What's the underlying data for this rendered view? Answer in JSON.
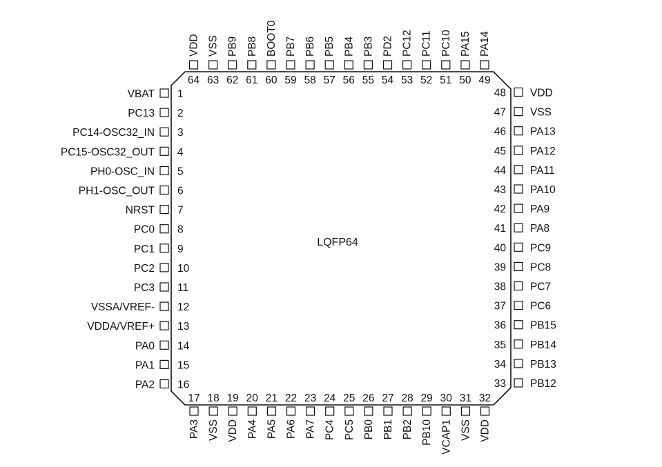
{
  "package": {
    "label": "LQFP64"
  },
  "pins": {
    "left": [
      {
        "num": "1",
        "name": "VBAT"
      },
      {
        "num": "2",
        "name": "PC13"
      },
      {
        "num": "3",
        "name": "PC14-OSC32_IN"
      },
      {
        "num": "4",
        "name": "PC15-OSC32_OUT"
      },
      {
        "num": "5",
        "name": "PH0-OSC_IN"
      },
      {
        "num": "6",
        "name": "PH1-OSC_OUT"
      },
      {
        "num": "7",
        "name": "NRST"
      },
      {
        "num": "8",
        "name": "PC0"
      },
      {
        "num": "9",
        "name": "PC1"
      },
      {
        "num": "10",
        "name": "PC2"
      },
      {
        "num": "11",
        "name": "PC3"
      },
      {
        "num": "12",
        "name": "VSSA/VREF-"
      },
      {
        "num": "13",
        "name": "VDDA/VREF+"
      },
      {
        "num": "14",
        "name": "PA0"
      },
      {
        "num": "15",
        "name": "PA1"
      },
      {
        "num": "16",
        "name": "PA2"
      }
    ],
    "bottom": [
      {
        "num": "17",
        "name": "PA3"
      },
      {
        "num": "18",
        "name": "VSS"
      },
      {
        "num": "19",
        "name": "VDD"
      },
      {
        "num": "20",
        "name": "PA4"
      },
      {
        "num": "21",
        "name": "PA5"
      },
      {
        "num": "22",
        "name": "PA6"
      },
      {
        "num": "23",
        "name": "PA7"
      },
      {
        "num": "24",
        "name": "PC4"
      },
      {
        "num": "25",
        "name": "PC5"
      },
      {
        "num": "26",
        "name": "PB0"
      },
      {
        "num": "27",
        "name": "PB1"
      },
      {
        "num": "28",
        "name": "PB2"
      },
      {
        "num": "29",
        "name": "PB10"
      },
      {
        "num": "30",
        "name": "VCAP1"
      },
      {
        "num": "31",
        "name": "VSS"
      },
      {
        "num": "32",
        "name": "VDD"
      }
    ],
    "right": [
      {
        "num": "33",
        "name": "PB12"
      },
      {
        "num": "34",
        "name": "PB13"
      },
      {
        "num": "35",
        "name": "PB14"
      },
      {
        "num": "36",
        "name": "PB15"
      },
      {
        "num": "37",
        "name": "PC6"
      },
      {
        "num": "38",
        "name": "PC7"
      },
      {
        "num": "39",
        "name": "PC8"
      },
      {
        "num": "40",
        "name": "PC9"
      },
      {
        "num": "41",
        "name": "PA8"
      },
      {
        "num": "42",
        "name": "PA9"
      },
      {
        "num": "43",
        "name": "PA10"
      },
      {
        "num": "44",
        "name": "PA11"
      },
      {
        "num": "45",
        "name": "PA12"
      },
      {
        "num": "46",
        "name": "PA13"
      },
      {
        "num": "47",
        "name": "VSS"
      },
      {
        "num": "48",
        "name": "VDD"
      }
    ],
    "top": [
      {
        "num": "49",
        "name": "PA14"
      },
      {
        "num": "50",
        "name": "PA15"
      },
      {
        "num": "51",
        "name": "PC10"
      },
      {
        "num": "52",
        "name": "PC11"
      },
      {
        "num": "53",
        "name": "PC12"
      },
      {
        "num": "54",
        "name": "PD2"
      },
      {
        "num": "55",
        "name": "PB3"
      },
      {
        "num": "56",
        "name": "PB4"
      },
      {
        "num": "57",
        "name": "PB5"
      },
      {
        "num": "58",
        "name": "PB6"
      },
      {
        "num": "59",
        "name": "PB7"
      },
      {
        "num": "60",
        "name": "BOOT0"
      },
      {
        "num": "61",
        "name": "PB8"
      },
      {
        "num": "62",
        "name": "PB9"
      },
      {
        "num": "63",
        "name": "VSS"
      },
      {
        "num": "64",
        "name": "VDD"
      }
    ]
  }
}
